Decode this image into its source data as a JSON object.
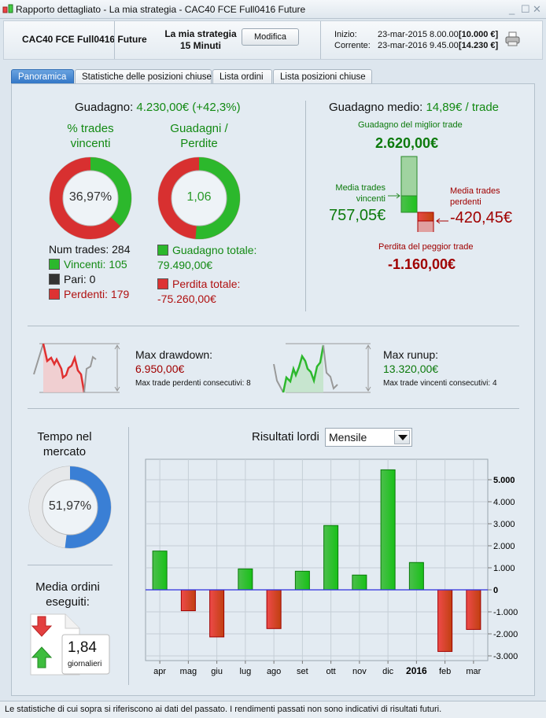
{
  "window": {
    "title": "Rapporto dettagliato - La mia strategia - CAC40 FCE Full0416 Future"
  },
  "header": {
    "instrument": "CAC40 FCE Full0416 Future",
    "strategy": "La mia strategia",
    "timeframe": "15 Minuti",
    "edit_button": "Modifica",
    "start_label": "Inizio:",
    "start_date": "23-mar-2015 8.00.00",
    "start_value": "[10.000 €]",
    "current_label": "Corrente:",
    "current_date": "23-mar-2016 9.45.00",
    "current_value": "[14.230 €]"
  },
  "tabs": [
    {
      "label": "Panoramica",
      "active": true
    },
    {
      "label": "Statistiche delle posizioni chiuse"
    },
    {
      "label": "Lista ordini"
    },
    {
      "label": "Lista posizioni chiuse"
    }
  ],
  "summary": {
    "gain_label": "Guadagno:",
    "gain_value": "4.230,00€ (+42,3%)",
    "win_title": "% trades vincenti",
    "win_pct_text": "36,97%",
    "win_pct": 36.97,
    "ratio_title": "Guadagni / Perdite",
    "ratio_text": "1,06",
    "ratio_green_pct": 51.4,
    "num_trades": "Num trades: 284",
    "winners": "Vincenti: 105",
    "even": "Pari: 0",
    "losers": "Perdenti: 179",
    "total_gain_label": "Guadagno totale:",
    "total_gain": "79.490,00€",
    "total_loss_label": "Perdita totale:",
    "total_loss": "-75.260,00€"
  },
  "average": {
    "title_label": "Guadagno medio:",
    "title_value": "14,89€ / trade",
    "best_label": "Guadagno del miglior trade",
    "best": "2.620,00€",
    "avg_win_label": "Media trades vincenti",
    "avg_win": "757,05€",
    "avg_loss_label": "Media trades perdenti",
    "avg_loss": "-420,45€",
    "worst_label": "Perdita del peggior trade",
    "worst": "-1.160,00€"
  },
  "drawdown": {
    "label": "Max drawdown:",
    "value": "6.950,00€",
    "consec": "Max trade perdenti consecutivi:  8"
  },
  "runup": {
    "label": "Max runup:",
    "value": "13.320,00€",
    "consec": "Max trade vincenti consecutivi: 4"
  },
  "market": {
    "title": "Tempo nel mercato",
    "pct_text": "51,97%",
    "pct": 51.97
  },
  "orders": {
    "title": "Media ordini eseguiti:",
    "value": "1,84",
    "unit": "giornalieri"
  },
  "results": {
    "label": "Risultati lordi",
    "period": "Mensile"
  },
  "chart_data": {
    "type": "bar",
    "title": "Risultati lordi",
    "categories": [
      "apr",
      "mag",
      "giu",
      "lug",
      "ago",
      "set",
      "ott",
      "nov",
      "dic",
      "2016",
      "feb",
      "mar"
    ],
    "values": [
      1760,
      -950,
      -2140,
      950,
      -1760,
      845,
      2920,
      670,
      5450,
      1240,
      -2800,
      -1800
    ],
    "yticks": [
      "5.000",
      "4.000",
      "3.000",
      "2.000",
      "1.000",
      "0",
      "-1.000",
      "-2.000",
      "-3.000"
    ],
    "ytick_values": [
      5000,
      4000,
      3000,
      2000,
      1000,
      0,
      -1000,
      -2000,
      -3000
    ],
    "ylim": [
      -3500,
      5900
    ],
    "grid": true,
    "colors": {
      "positive": "#22b822",
      "negative": "#d83a2a",
      "zero_line": "#2f2fe0"
    }
  },
  "footer": "Le statistiche di cui sopra si riferiscono ai dati del passato. I rendimenti passati non sono indicativi di risultati futuri."
}
